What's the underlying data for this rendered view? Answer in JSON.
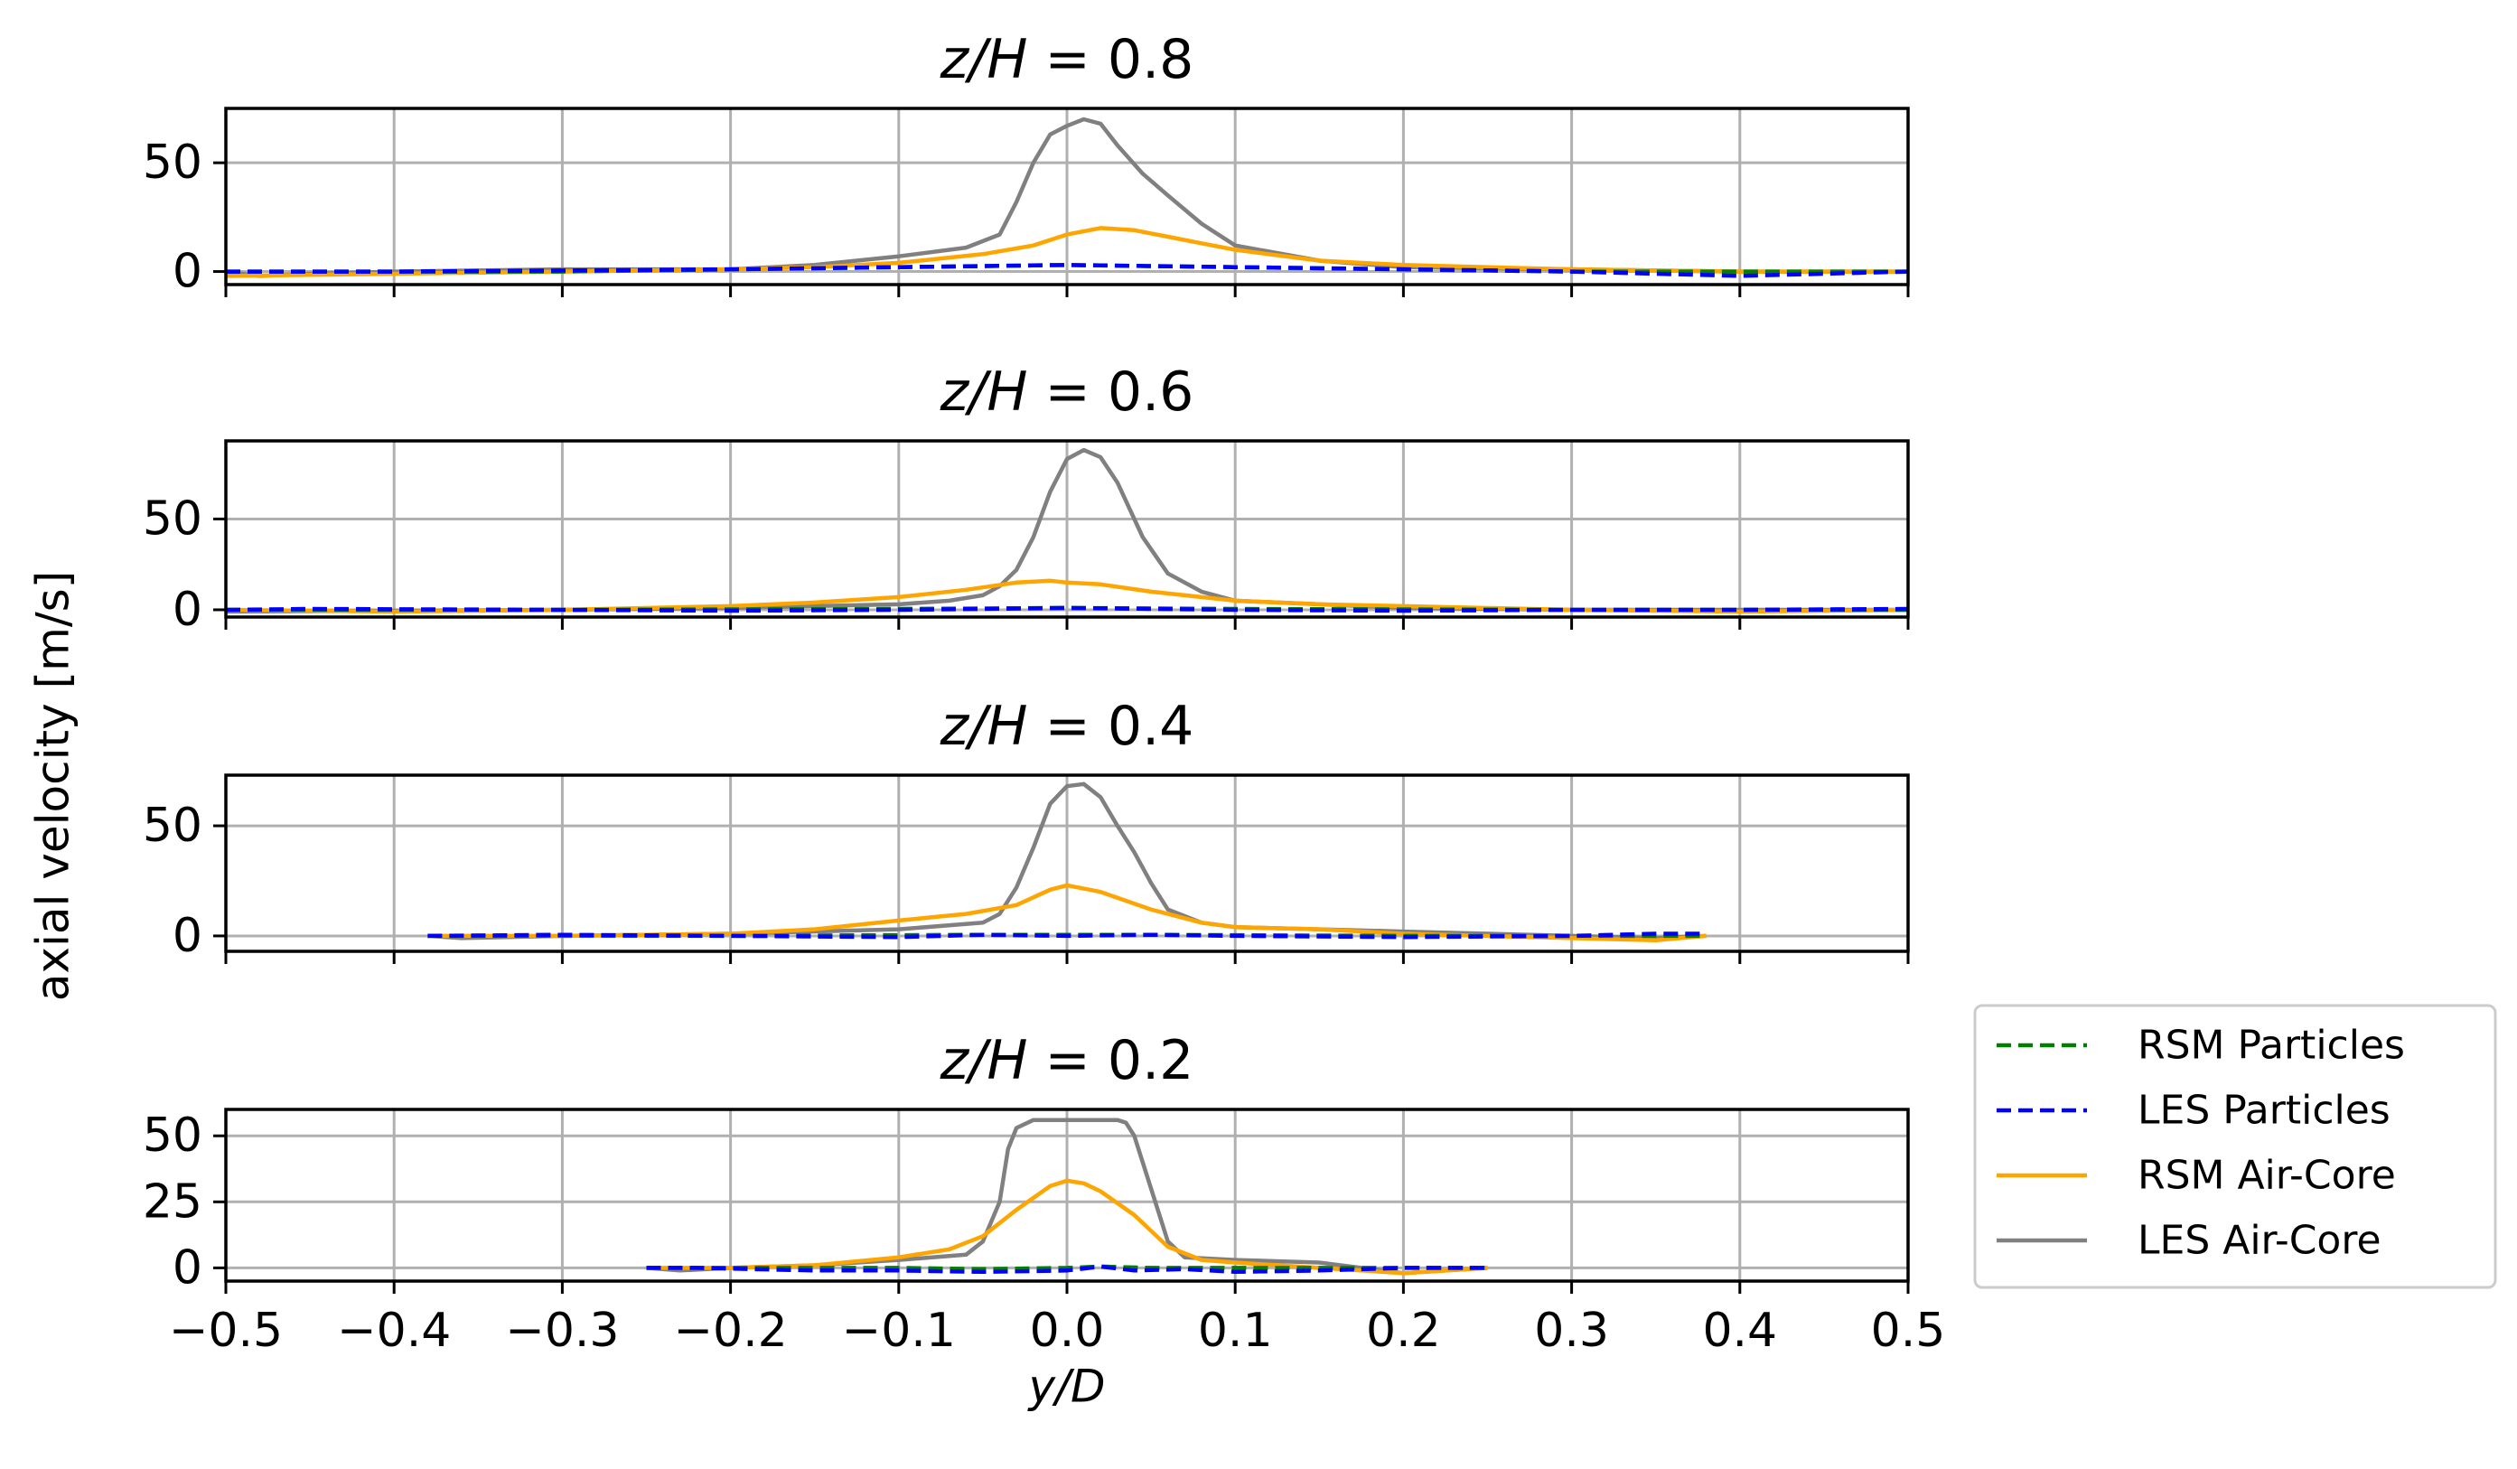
{
  "chart_data": {
    "type": "line",
    "shared_ylabel": "axial velocity [m/s]",
    "xlabel": "y/D",
    "xlim": [
      -0.5,
      0.5
    ],
    "xticks": [
      -0.5,
      -0.4,
      -0.3,
      -0.2,
      -0.1,
      0.0,
      0.1,
      0.2,
      0.3,
      0.4,
      0.5
    ],
    "xtick_labels": [
      "−0.5",
      "−0.4",
      "−0.3",
      "−0.2",
      "−0.1",
      "0.0",
      "0.1",
      "0.2",
      "0.3",
      "0.4",
      "0.5"
    ],
    "grid": true,
    "legend": {
      "placement": "right, outside lower",
      "entries": [
        {
          "label": "RSM Particles",
          "color": "#008000",
          "style": "dashed"
        },
        {
          "label": "LES Particles",
          "color": "#0000ff",
          "style": "dashed"
        },
        {
          "label": "RSM Air-Core",
          "color": "#ffa500",
          "style": "solid"
        },
        {
          "label": "LES Air-Core",
          "color": "#808080",
          "style": "solid"
        }
      ]
    },
    "panels": [
      {
        "title_var": "z/H",
        "title_eq": " = ",
        "title_val": "0.8",
        "ylim": [
          -6,
          75
        ],
        "yticks": [
          0,
          50
        ],
        "series": [
          {
            "name": "RSM Particles",
            "x": [
              -0.5,
              -0.3,
              -0.1,
              0.0,
              0.1,
              0.2,
              0.3,
              0.5
            ],
            "y": [
              0,
              0,
              2,
              3,
              2,
              1,
              0,
              0
            ]
          },
          {
            "name": "LES Particles",
            "x": [
              -0.5,
              -0.4,
              -0.3,
              -0.2,
              -0.1,
              -0.05,
              0.0,
              0.05,
              0.1,
              0.2,
              0.3,
              0.4,
              0.5
            ],
            "y": [
              0,
              0,
              0.5,
              1,
              2,
              2.5,
              3,
              2.5,
              2,
              1,
              0,
              -2,
              0
            ]
          },
          {
            "name": "RSM Air-Core",
            "x": [
              -0.5,
              -0.4,
              -0.3,
              -0.2,
              -0.15,
              -0.1,
              -0.05,
              -0.02,
              0.0,
              0.02,
              0.04,
              0.06,
              0.08,
              0.1,
              0.15,
              0.2,
              0.3,
              0.4,
              0.5
            ],
            "y": [
              -2,
              -1,
              0,
              1,
              2,
              4,
              8,
              12,
              17,
              20,
              19,
              16,
              13,
              10,
              5,
              3,
              1,
              0,
              0
            ]
          },
          {
            "name": "LES Air-Core",
            "x": [
              -0.5,
              -0.48,
              -0.45,
              -0.4,
              -0.3,
              -0.2,
              -0.15,
              -0.1,
              -0.06,
              -0.04,
              -0.03,
              -0.02,
              -0.01,
              0.0,
              0.01,
              0.02,
              0.03,
              0.045,
              0.06,
              0.08,
              0.1,
              0.15,
              0.2,
              0.3,
              0.4,
              0.5
            ],
            "y": [
              0,
              -2,
              -1,
              0,
              1,
              1,
              3,
              7,
              11,
              17,
              32,
              50,
              63,
              67,
              70,
              68,
              58,
              45,
              35,
              22,
              12,
              5,
              2,
              1,
              0,
              0
            ]
          }
        ]
      },
      {
        "title_var": "z/H",
        "title_eq": " = ",
        "title_val": "0.6",
        "ylim": [
          -4,
          93
        ],
        "yticks": [
          0,
          50
        ],
        "series": [
          {
            "name": "RSM Particles",
            "x": [
              -0.5,
              -0.3,
              -0.1,
              0.0,
              0.1,
              0.3,
              0.5
            ],
            "y": [
              0,
              0,
              0.5,
              1,
              0.5,
              0,
              0
            ]
          },
          {
            "name": "LES Particles",
            "x": [
              -0.5,
              -0.45,
              -0.3,
              -0.2,
              -0.1,
              -0.05,
              0.0,
              0.05,
              0.1,
              0.2,
              0.3,
              0.4,
              0.5
            ],
            "y": [
              0,
              0.5,
              0,
              -0.5,
              0,
              0.5,
              1,
              0.5,
              0,
              -0.5,
              0,
              0,
              0.5
            ]
          },
          {
            "name": "RSM Air-Core",
            "x": [
              -0.5,
              -0.4,
              -0.3,
              -0.2,
              -0.15,
              -0.1,
              -0.06,
              -0.03,
              -0.01,
              0.0,
              0.02,
              0.05,
              0.08,
              0.1,
              0.15,
              0.2,
              0.3,
              0.4,
              0.5
            ],
            "y": [
              0,
              -1,
              0,
              2,
              4,
              7,
              11,
              15,
              16,
              15,
              14,
              10,
              7,
              5,
              3,
              2,
              0,
              -1,
              0
            ]
          },
          {
            "name": "LES Air-Core",
            "x": [
              -0.5,
              -0.3,
              -0.2,
              -0.1,
              -0.07,
              -0.05,
              -0.04,
              -0.03,
              -0.02,
              -0.01,
              0.0,
              0.01,
              0.02,
              0.03,
              0.045,
              0.06,
              0.08,
              0.1,
              0.15,
              0.2,
              0.3,
              0.5
            ],
            "y": [
              -1,
              0,
              1,
              3,
              5,
              8,
              13,
              22,
              40,
              65,
              83,
              88,
              84,
              70,
              40,
              20,
              10,
              5,
              3,
              1,
              0,
              0
            ]
          }
        ]
      },
      {
        "title_var": "z/H",
        "title_eq": " = ",
        "title_val": "0.4",
        "ylim": [
          -7,
          73
        ],
        "yticks": [
          0,
          50
        ],
        "series": [
          {
            "name": "RSM Particles",
            "x": [
              -0.38,
              -0.2,
              -0.05,
              0.0,
              0.05,
              0.2,
              0.38
            ],
            "y": [
              0,
              0,
              0.5,
              0.5,
              0.5,
              0,
              0
            ]
          },
          {
            "name": "LES Particles",
            "x": [
              -0.38,
              -0.3,
              -0.2,
              -0.1,
              -0.05,
              0.0,
              0.05,
              0.1,
              0.2,
              0.3,
              0.35,
              0.38
            ],
            "y": [
              0,
              0.5,
              0,
              -0.5,
              0.5,
              0,
              0.5,
              0,
              -0.5,
              0,
              1,
              1
            ]
          },
          {
            "name": "RSM Air-Core",
            "x": [
              -0.38,
              -0.3,
              -0.2,
              -0.15,
              -0.1,
              -0.06,
              -0.03,
              -0.01,
              0.0,
              0.02,
              0.05,
              0.08,
              0.1,
              0.15,
              0.2,
              0.3,
              0.35,
              0.38
            ],
            "y": [
              0,
              0,
              1,
              3,
              7,
              10,
              14,
              21,
              23,
              20,
              12,
              6,
              4,
              3,
              1,
              -1,
              -2,
              0
            ]
          },
          {
            "name": "LES Air-Core",
            "x": [
              -0.38,
              -0.36,
              -0.3,
              -0.2,
              -0.1,
              -0.05,
              -0.04,
              -0.03,
              -0.02,
              -0.01,
              0.0,
              0.01,
              0.02,
              0.03,
              0.04,
              0.05,
              0.06,
              0.08,
              0.1,
              0.15,
              0.2,
              0.3,
              0.35,
              0.38
            ],
            "y": [
              0,
              -1,
              0,
              1,
              3,
              6,
              10,
              22,
              40,
              60,
              68,
              69,
              63,
              50,
              38,
              24,
              12,
              6,
              4,
              3,
              2,
              0,
              -1,
              0
            ]
          }
        ]
      },
      {
        "title_var": "z/H",
        "title_eq": " = ",
        "title_val": "0.2",
        "ylim": [
          -5,
          60
        ],
        "yticks": [
          0,
          25,
          50
        ],
        "series": [
          {
            "name": "RSM Particles",
            "x": [
              -0.25,
              -0.2,
              -0.1,
              -0.05,
              0.0,
              0.02,
              0.05,
              0.1,
              0.2,
              0.25
            ],
            "y": [
              0,
              0,
              0,
              -0.5,
              0,
              0.5,
              0,
              0,
              0,
              0
            ]
          },
          {
            "name": "LES Particles",
            "x": [
              -0.25,
              -0.22,
              -0.15,
              -0.1,
              -0.05,
              0.0,
              0.02,
              0.04,
              0.07,
              0.1,
              0.15,
              0.2,
              0.25
            ],
            "y": [
              0,
              0,
              -1,
              -1,
              -1.5,
              -1,
              0.5,
              -1,
              -0.5,
              -1.5,
              -1,
              0,
              0
            ]
          },
          {
            "name": "RSM Air-Core",
            "x": [
              -0.25,
              -0.2,
              -0.15,
              -0.1,
              -0.07,
              -0.05,
              -0.03,
              -0.01,
              0.0,
              0.01,
              0.02,
              0.04,
              0.06,
              0.08,
              0.1,
              0.15,
              0.2,
              0.25
            ],
            "y": [
              0,
              0,
              1,
              4,
              7,
              12,
              22,
              31,
              33,
              32,
              29,
              20,
              8,
              3,
              2,
              0,
              -2,
              0
            ]
          },
          {
            "name": "LES Air-Core",
            "x": [
              -0.25,
              -0.23,
              -0.2,
              -0.15,
              -0.1,
              -0.06,
              -0.05,
              -0.04,
              -0.035,
              -0.03,
              -0.02,
              0.0,
              0.02,
              0.03,
              0.035,
              0.04,
              0.05,
              0.06,
              0.07,
              0.1,
              0.15,
              0.2,
              0.25
            ],
            "y": [
              0,
              -1,
              0,
              1,
              3,
              5,
              10,
              25,
              45,
              53,
              56,
              56,
              56,
              56,
              55,
              50,
              30,
              10,
              4,
              3,
              2,
              -2,
              0
            ]
          }
        ]
      }
    ]
  }
}
